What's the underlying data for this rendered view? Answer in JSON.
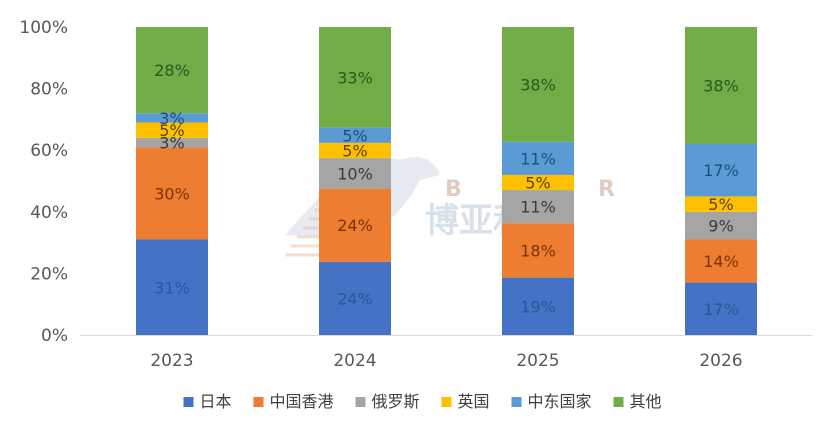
{
  "watermark": {
    "chinese": "博亚和讯",
    "latin": [
      "B",
      "R"
    ]
  },
  "chart_data": {
    "type": "bar",
    "stacked": true,
    "percent_stacked": true,
    "categories": [
      "2023",
      "2024",
      "2025",
      "2026"
    ],
    "ylim": [
      0,
      100
    ],
    "y_ticks": [
      "0%",
      "20%",
      "40%",
      "60%",
      "80%",
      "100%"
    ],
    "grid": false,
    "legend_position": "bottom",
    "series": [
      {
        "name": "日本",
        "color": "#4472C4",
        "label_color": "#2f5597",
        "values": [
          31,
          24,
          19,
          17
        ],
        "labels": [
          "31%",
          "24%",
          "19%",
          "17%"
        ]
      },
      {
        "name": "中国香港",
        "color": "#ED7D31",
        "label_color": "#7a3208",
        "values": [
          30,
          24,
          18,
          14
        ],
        "labels": [
          "30%",
          "24%",
          "18%",
          "14%"
        ]
      },
      {
        "name": "俄罗斯",
        "color": "#A5A5A5",
        "label_color": "#3a3a3a",
        "values": [
          3,
          10,
          11,
          9
        ],
        "labels": [
          "3%",
          "10%",
          "11%",
          "9%"
        ]
      },
      {
        "name": "英国",
        "color": "#FFC000",
        "label_color": "#5a4300",
        "values": [
          5,
          5,
          5,
          5
        ],
        "labels": [
          "5%",
          "5%",
          "5%",
          "5%"
        ]
      },
      {
        "name": "中东国家",
        "color": "#5B9BD5",
        "label_color": "#1f4e79",
        "values": [
          3,
          5,
          11,
          17
        ],
        "labels": [
          "3%",
          "5%",
          "11%",
          "17%"
        ]
      },
      {
        "name": "其他",
        "color": "#70AD47",
        "label_color": "#2e5420",
        "values": [
          28,
          33,
          38,
          38
        ],
        "labels": [
          "28%",
          "33%",
          "38%",
          "38%"
        ]
      }
    ]
  }
}
